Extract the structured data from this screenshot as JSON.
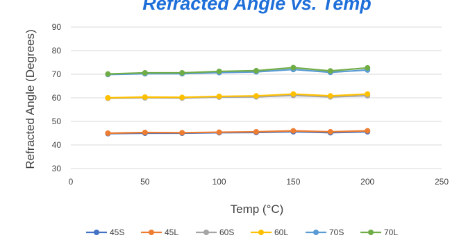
{
  "chart_data": {
    "type": "line",
    "title": "Refracted Angle vs. Temp",
    "xlabel": "Temp (°C)",
    "ylabel": "Refracted Angle  (Degrees)",
    "xlim": [
      0,
      250
    ],
    "ylim": [
      30,
      90
    ],
    "xticks": [
      "0",
      "50",
      "100",
      "150",
      "200",
      "250"
    ],
    "yticks": [
      "30",
      "40",
      "50",
      "60",
      "70",
      "80",
      "90"
    ],
    "grid": true,
    "legend_position": "bottom",
    "x": [
      25,
      50,
      75,
      100,
      125,
      150,
      175,
      200
    ],
    "series": [
      {
        "name": "45S",
        "color": "#4472c4",
        "values": [
          44.8,
          45.0,
          45.0,
          45.2,
          45.3,
          45.6,
          45.2,
          45.6
        ]
      },
      {
        "name": "45L",
        "color": "#ed7d31",
        "values": [
          45.0,
          45.3,
          45.2,
          45.4,
          45.6,
          46.0,
          45.6,
          46.0
        ]
      },
      {
        "name": "60S",
        "color": "#a5a5a5",
        "values": [
          59.8,
          60.0,
          59.9,
          60.3,
          60.4,
          61.0,
          60.4,
          60.9
        ]
      },
      {
        "name": "60L",
        "color": "#ffc000",
        "values": [
          60.0,
          60.3,
          60.2,
          60.6,
          60.8,
          61.6,
          60.8,
          61.6
        ]
      },
      {
        "name": "70S",
        "color": "#5b9bd5",
        "values": [
          69.9,
          70.2,
          70.2,
          70.7,
          71.0,
          72.0,
          70.8,
          71.8
        ]
      },
      {
        "name": "70L",
        "color": "#70ad47",
        "values": [
          70.1,
          70.6,
          70.6,
          71.2,
          71.5,
          72.8,
          71.4,
          72.7
        ]
      }
    ]
  }
}
